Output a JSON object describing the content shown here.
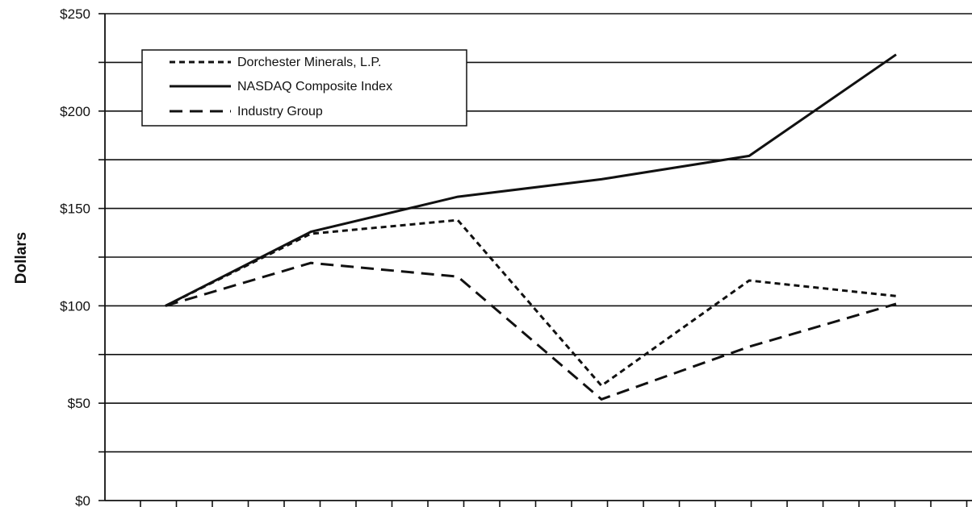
{
  "chart_data": {
    "type": "line",
    "title": "",
    "xlabel": "",
    "ylabel": "Dollars",
    "ylim": [
      0,
      250
    ],
    "ytick_step": 25,
    "ytick_labels": [
      {
        "value": 0,
        "label": "$0"
      },
      {
        "value": 50,
        "label": "$50"
      },
      {
        "value": 100,
        "label": "$100"
      },
      {
        "value": 150,
        "label": "$150"
      },
      {
        "value": 200,
        "label": "$200"
      },
      {
        "value": 250,
        "label": "$250"
      }
    ],
    "grid": true,
    "legend_position": "top-left",
    "series": [
      {
        "name": "Dorchester Minerals, L.P.",
        "style": "dotted",
        "values": [
          100,
          137,
          144,
          59,
          113,
          105
        ]
      },
      {
        "name": "NASDAQ Composite Index",
        "style": "solid",
        "values": [
          100,
          138,
          156,
          165,
          177,
          229
        ]
      },
      {
        "name": "Industry Group",
        "style": "dashed",
        "values": [
          100,
          122,
          115,
          52,
          79,
          101
        ]
      }
    ],
    "line_color": "#111111"
  }
}
